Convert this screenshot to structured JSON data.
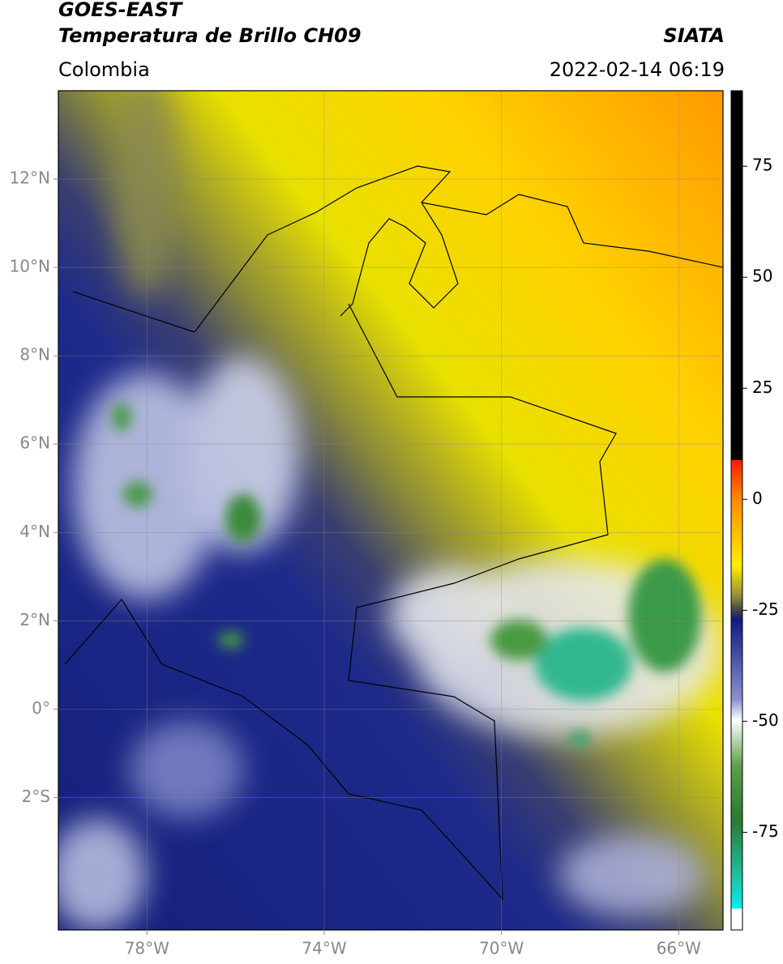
{
  "header": {
    "title": "GOES-EAST",
    "subtitle": "Temperatura de Brillo CH09",
    "source": "SIATA",
    "region": "Colombia",
    "datetime": "2022-02-14 06:19"
  },
  "map": {
    "xlim": [
      -80,
      -65
    ],
    "ylim": [
      -5,
      14
    ],
    "xticks": [
      {
        "value": -78,
        "label": "78°W"
      },
      {
        "value": -74,
        "label": "74°W"
      },
      {
        "value": -70,
        "label": "70°W"
      },
      {
        "value": -66,
        "label": "66°W"
      }
    ],
    "yticks": [
      {
        "value": 12,
        "label": "12°N"
      },
      {
        "value": 10,
        "label": "10°N"
      },
      {
        "value": 8,
        "label": "8°N"
      },
      {
        "value": 6,
        "label": "6°N"
      },
      {
        "value": 4,
        "label": "4°N"
      },
      {
        "value": 2,
        "label": "2°N"
      },
      {
        "value": 0,
        "label": "0°"
      },
      {
        "value": -2,
        "label": "2°S"
      }
    ],
    "grid": true
  },
  "colorbar": {
    "lim": [
      -97,
      92
    ],
    "ticks": [
      75,
      50,
      25,
      0,
      -25,
      -50,
      -75
    ]
  }
}
